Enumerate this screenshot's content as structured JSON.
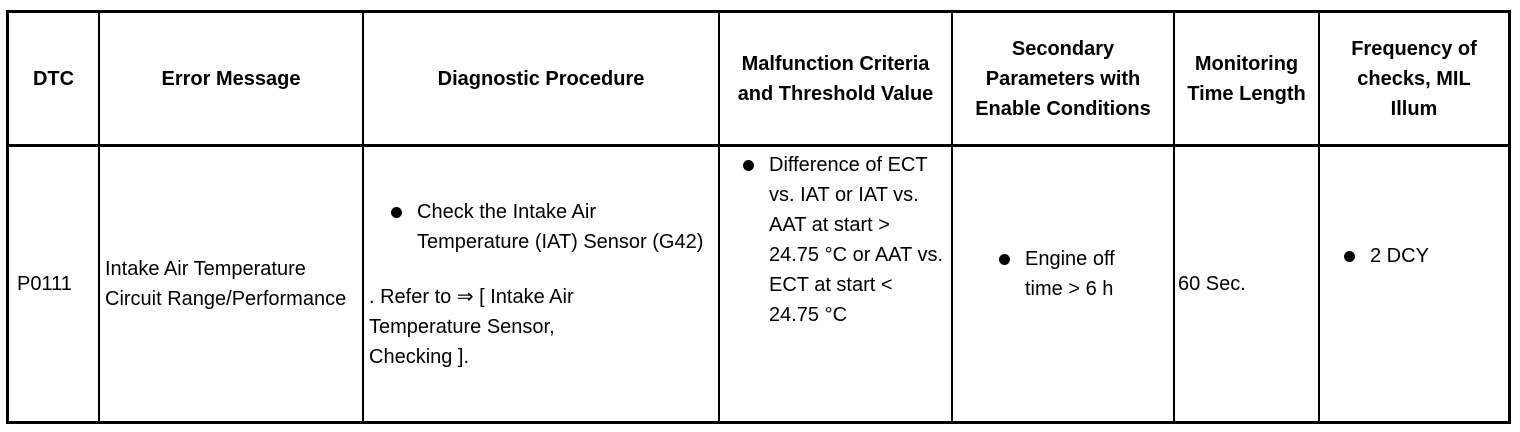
{
  "headers": [
    "DTC",
    "Error Message",
    "Diagnostic Procedure",
    "Malfunction Criteria and Threshold Value",
    "Secondary Parameters with Enable Conditions",
    "Monitoring Time Length",
    "Frequency of checks, MIL Illum"
  ],
  "row": {
    "dtc": "P0111",
    "error_message": "Intake Air Temperature Circuit Range/Performance",
    "diagnostic_bullet": "Check the Intake Air Temperature (IAT) Sensor (G42)",
    "diagnostic_refer": ". Refer to ⇒ [ Intake Air Temperature Sensor, Checking ].",
    "malfunction": "Difference of ECT vs. IAT or IAT vs. AAT at start > 24.75 °C or AAT vs. ECT at start < 24.75 °C",
    "secondary": "Engine off time > 6 h",
    "monitoring": "60 Sec.",
    "frequency": "2 DCY"
  }
}
